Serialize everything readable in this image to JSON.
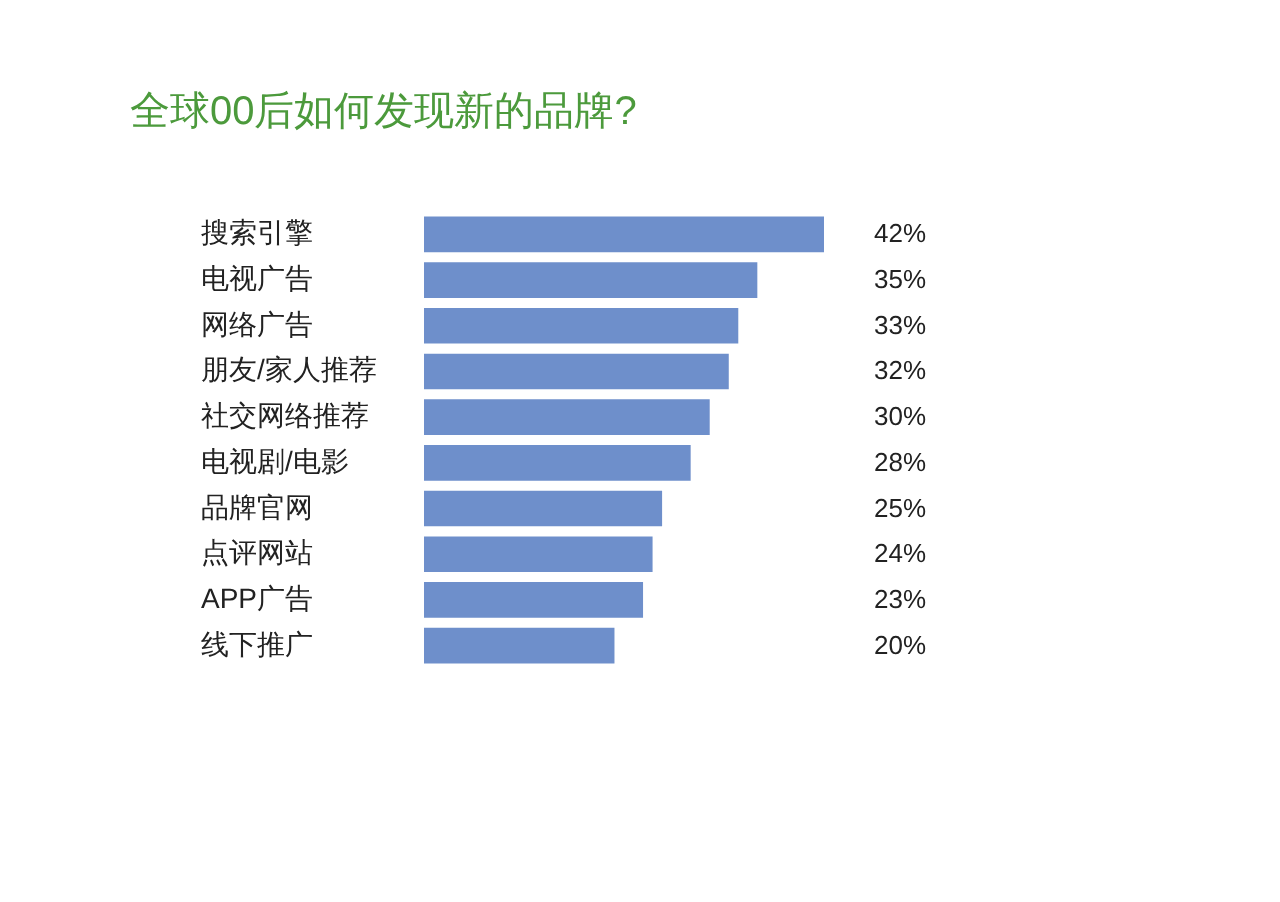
{
  "chart_data": {
    "type": "bar",
    "orientation": "horizontal",
    "title": "全球00后如何发现新的品牌?",
    "categories": [
      "搜索引擎",
      "电视广告",
      "网络广告",
      "朋友/家人推荐",
      "社交网络推荐",
      "电视剧/电影",
      "品牌官网",
      "点评网站",
      "APP广告",
      "线下推广"
    ],
    "values": [
      42,
      35,
      33,
      32,
      30,
      28,
      25,
      24,
      23,
      20
    ],
    "value_labels": [
      "42%",
      "35%",
      "33%",
      "32%",
      "30%",
      "28%",
      "25%",
      "24%",
      "23%",
      "20%"
    ],
    "color": "#6e8fcb",
    "grid": false
  }
}
